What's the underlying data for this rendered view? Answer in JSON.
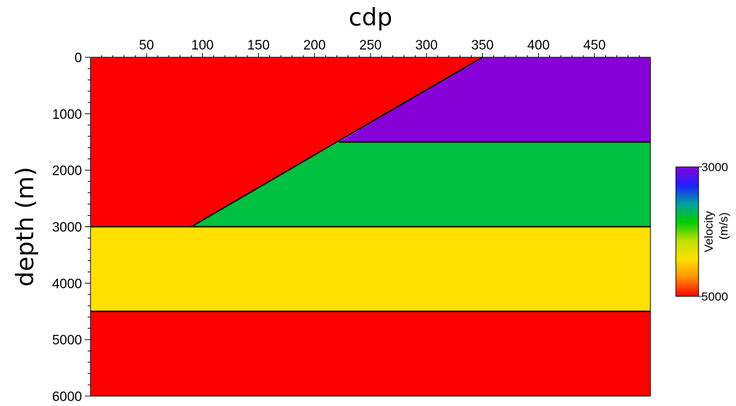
{
  "chart_data": {
    "type": "heatmap",
    "title": "",
    "xlabel": "cdp",
    "ylabel": "depth (m)",
    "xlim": [
      0,
      500
    ],
    "ylim": [
      6000,
      0
    ],
    "x_ticks": [
      50,
      100,
      150,
      200,
      250,
      300,
      350,
      400,
      450
    ],
    "y_ticks": [
      0,
      1000,
      2000,
      3000,
      4000,
      5000,
      6000
    ],
    "layers": [
      {
        "name": "bottom-layer",
        "color": "#ff0000",
        "polygon": [
          [
            0,
            4500
          ],
          [
            500,
            4500
          ],
          [
            500,
            6000
          ],
          [
            0,
            6000
          ]
        ]
      },
      {
        "name": "yellow-layer",
        "color": "#ffe000",
        "polygon": [
          [
            0,
            3000
          ],
          [
            500,
            3000
          ],
          [
            500,
            4500
          ],
          [
            0,
            4500
          ]
        ]
      },
      {
        "name": "green-wedge",
        "color": "#00c040",
        "polygon": [
          [
            90,
            3000
          ],
          [
            222,
            1500
          ],
          [
            500,
            1500
          ],
          [
            500,
            3000
          ]
        ]
      },
      {
        "name": "purple-wedge",
        "color": "#8800d8",
        "polygon": [
          [
            222,
            1500
          ],
          [
            350,
            0
          ],
          [
            500,
            0
          ],
          [
            500,
            1500
          ]
        ]
      },
      {
        "name": "left-block",
        "color": "#ff0000",
        "polygon": [
          [
            0,
            0
          ],
          [
            350,
            0
          ],
          [
            90,
            3000
          ],
          [
            0,
            3000
          ]
        ]
      }
    ],
    "boundaries": [
      [
        [
          90,
          3000
        ],
        [
          350,
          0
        ]
      ],
      [
        [
          222,
          1500
        ],
        [
          500,
          1500
        ]
      ],
      [
        [
          0,
          3000
        ],
        [
          500,
          3000
        ]
      ],
      [
        [
          0,
          4500
        ],
        [
          500,
          4500
        ]
      ]
    ],
    "colorbar": {
      "label_line1": "Velocity",
      "label_line2": "(m/s)",
      "max_label": "3000",
      "min_label": "5000",
      "stops": [
        "#8800d8",
        "#2020ff",
        "#00a0a0",
        "#00d000",
        "#c0e000",
        "#ffe000",
        "#ff9000",
        "#ff0000"
      ]
    }
  }
}
